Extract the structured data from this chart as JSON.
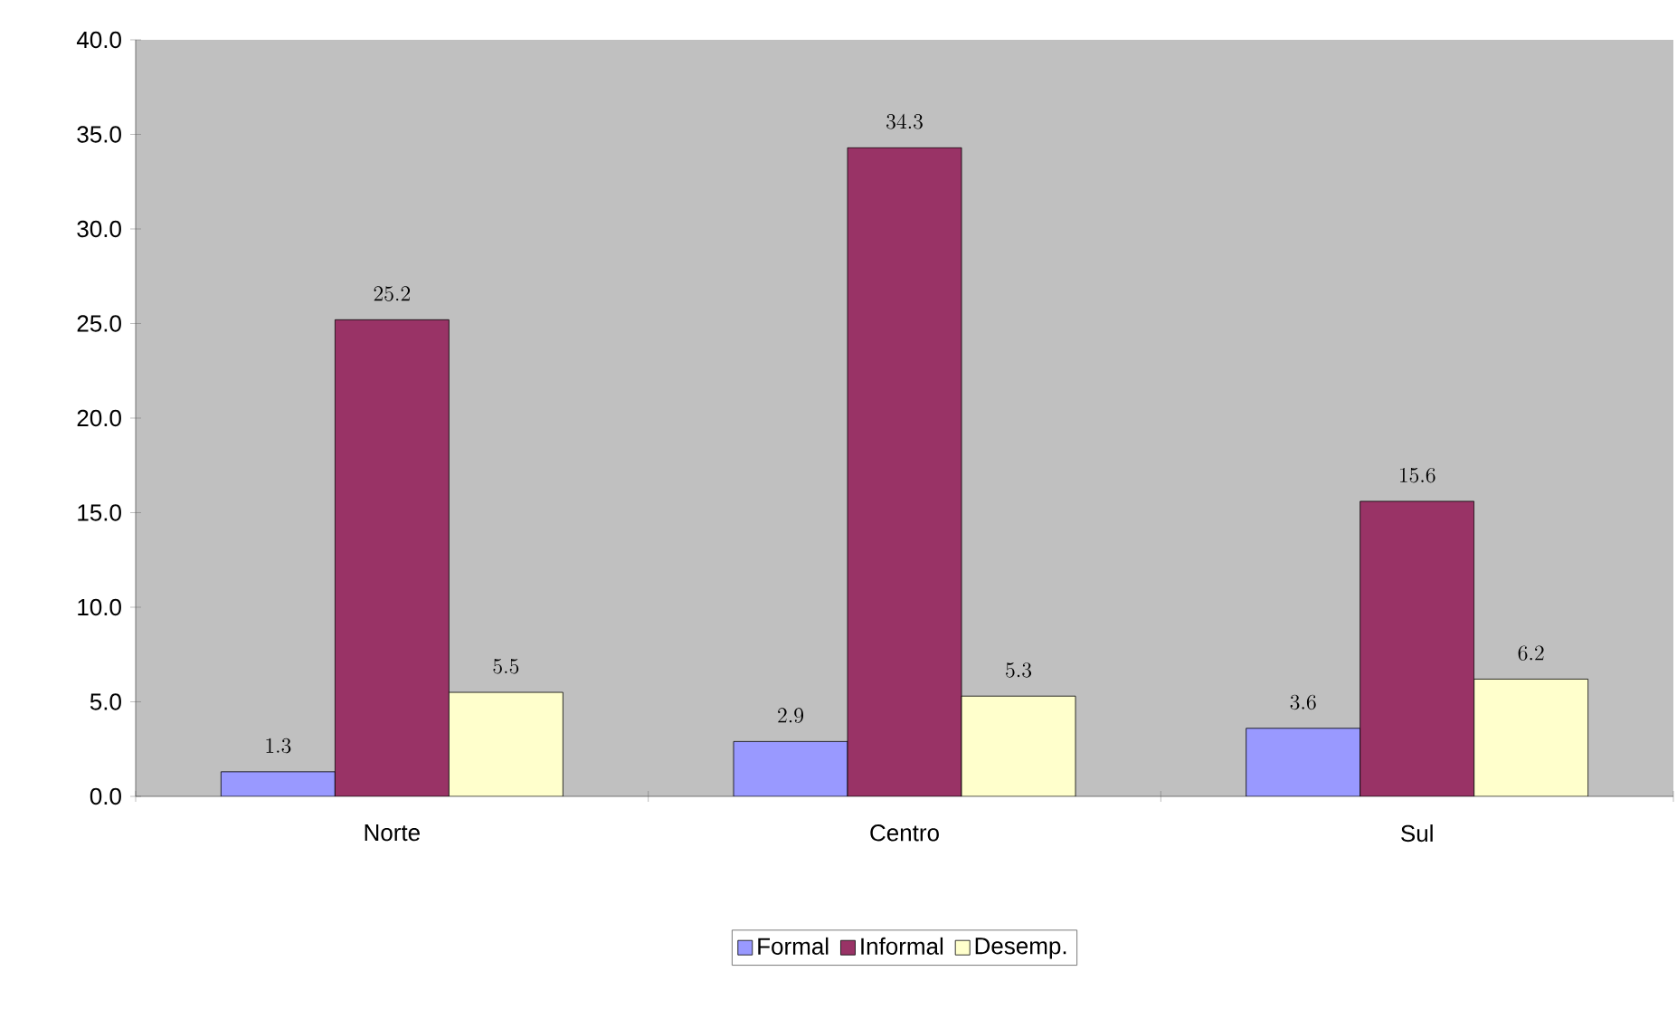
{
  "chart_data": {
    "type": "bar",
    "categories": [
      "Norte",
      "Centro",
      "Sul"
    ],
    "series": [
      {
        "name": "Formal",
        "color": "#9999ff",
        "values": [
          1.3,
          2.9,
          3.6
        ]
      },
      {
        "name": "Informal",
        "color": "#993366",
        "values": [
          25.2,
          34.3,
          15.6
        ]
      },
      {
        "name": "Desemp.",
        "color": "#ffffcc",
        "values": [
          5.5,
          5.3,
          6.2
        ]
      }
    ],
    "ylim": [
      0,
      40
    ],
    "yticks": [
      {
        "value": 0,
        "label": "0.0"
      },
      {
        "value": 5,
        "label": "5.0"
      },
      {
        "value": 10,
        "label": "10.0"
      },
      {
        "value": 15,
        "label": "15.0"
      },
      {
        "value": 20,
        "label": "20.0"
      },
      {
        "value": 25,
        "label": "25.0"
      },
      {
        "value": 30,
        "label": "30.0"
      },
      {
        "value": 35,
        "label": "35.0"
      },
      {
        "value": 40,
        "label": "40.0"
      }
    ],
    "data_labels": true,
    "grid": false,
    "legend": "bottom"
  }
}
